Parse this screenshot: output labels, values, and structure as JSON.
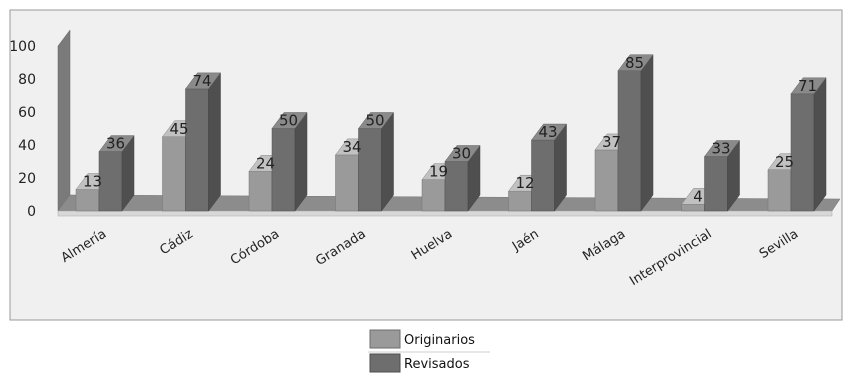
{
  "chart_data": {
    "type": "bar",
    "categories": [
      "Almería",
      "Cádiz",
      "Córdoba",
      "Granada",
      "Huelva",
      "Jaén",
      "Málaga",
      "Interprovincial",
      "Sevilla"
    ],
    "series": [
      {
        "name": "Originarios",
        "values": [
          13,
          45,
          24,
          34,
          19,
          12,
          37,
          4,
          25
        ],
        "color": "#9a9a9a"
      },
      {
        "name": "Revisados",
        "values": [
          36,
          74,
          50,
          50,
          30,
          43,
          85,
          33,
          71
        ],
        "color": "#6e6e6e"
      }
    ],
    "yticks": [
      0,
      20,
      40,
      60,
      80,
      100
    ],
    "ylim": [
      0,
      100
    ],
    "legend_position": "bottom-center",
    "style": "3d",
    "plot_background": "#f0f0f0"
  }
}
